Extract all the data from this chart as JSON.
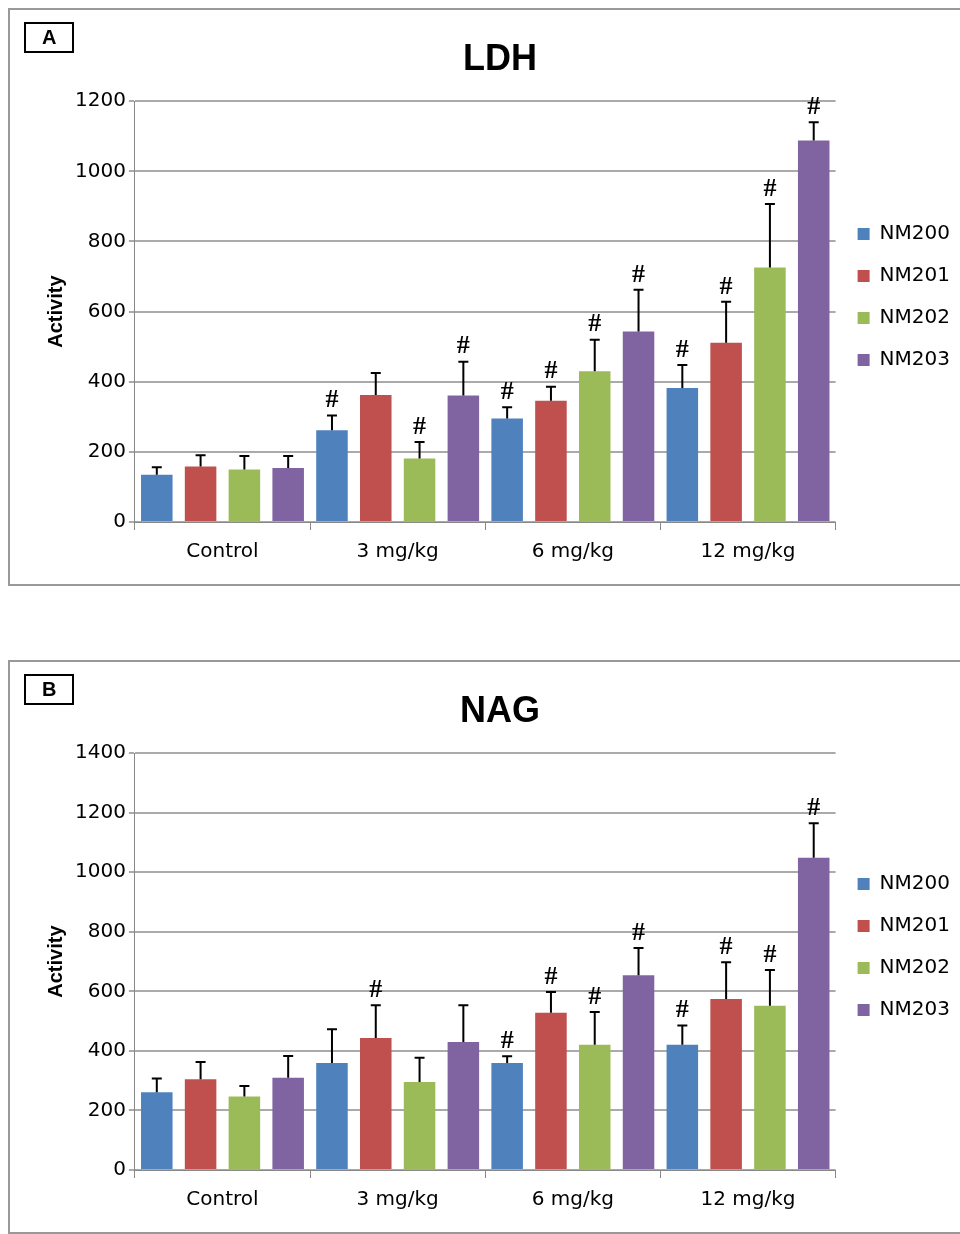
{
  "chart_data": [
    {
      "type": "bar",
      "title": "LDH",
      "ylabel": "Activity",
      "annotations": [
        "A"
      ],
      "categories": [
        "Control",
        "3 mg/kg",
        "6 mg/kg",
        "12 mg/kg"
      ],
      "series": [
        {
          "name": "NM200",
          "color": "#4f81bd",
          "values": [
            135,
            262,
            295,
            382
          ],
          "errors": [
            21,
            42,
            32,
            66
          ],
          "value_labels": [
            null,
            "#",
            "#",
            "#"
          ]
        },
        {
          "name": "NM201",
          "color": "#c0504d",
          "values": [
            158,
            362,
            346,
            511
          ],
          "errors": [
            32,
            63,
            40,
            117
          ],
          "value_labels": [
            null,
            null,
            "#",
            "#"
          ]
        },
        {
          "name": "NM202",
          "color": "#9bbb59",
          "values": [
            150,
            181,
            430,
            726
          ],
          "errors": [
            38,
            47,
            90,
            181
          ],
          "value_labels": [
            null,
            "#",
            "#",
            "#"
          ]
        },
        {
          "name": "NM203",
          "color": "#8064a2",
          "values": [
            154,
            361,
            543,
            1088
          ],
          "errors": [
            34,
            96,
            119,
            52
          ],
          "value_labels": [
            null,
            "#",
            "#",
            "#"
          ]
        }
      ],
      "ylim": [
        0,
        1200
      ],
      "yticks": [
        0,
        200,
        400,
        600,
        800,
        1000,
        1200
      ],
      "grid": "y",
      "legend": "right"
    },
    {
      "type": "bar",
      "title": "NAG",
      "ylabel": "Activity",
      "annotations": [
        "B"
      ],
      "categories": [
        "Control",
        "3 mg/kg",
        "6 mg/kg",
        "12 mg/kg"
      ],
      "series": [
        {
          "name": "NM200",
          "color": "#4f81bd",
          "values": [
            261,
            359,
            359,
            421
          ],
          "errors": [
            46,
            114,
            23,
            64
          ],
          "value_labels": [
            null,
            null,
            "#",
            "#"
          ]
        },
        {
          "name": "NM201",
          "color": "#c0504d",
          "values": [
            305,
            443,
            528,
            574
          ],
          "errors": [
            58,
            110,
            70,
            124
          ],
          "value_labels": [
            null,
            "#",
            "#",
            "#"
          ]
        },
        {
          "name": "NM202",
          "color": "#9bbb59",
          "values": [
            247,
            296,
            421,
            552
          ],
          "errors": [
            35,
            81,
            110,
            120
          ],
          "value_labels": [
            null,
            null,
            "#",
            "#"
          ]
        },
        {
          "name": "NM203",
          "color": "#8064a2",
          "values": [
            310,
            430,
            654,
            1049
          ],
          "errors": [
            73,
            123,
            92,
            116
          ],
          "value_labels": [
            null,
            null,
            "#",
            "#"
          ]
        }
      ],
      "ylim": [
        0,
        1400
      ],
      "yticks": [
        0,
        200,
        400,
        600,
        800,
        1000,
        1200,
        1400
      ],
      "grid": "y",
      "legend": "right"
    }
  ]
}
